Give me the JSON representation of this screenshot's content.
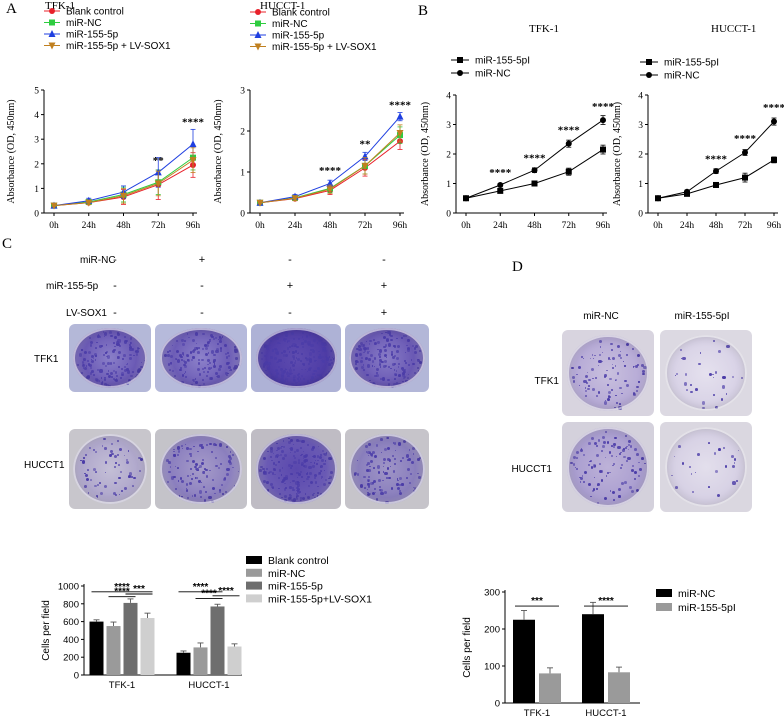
{
  "panels": {
    "A": {
      "letter": "A"
    },
    "B": {
      "letter": "B"
    },
    "C": {
      "letter": "C"
    },
    "D": {
      "letter": "D"
    }
  },
  "panel_C_table": {
    "rows": [
      {
        "label": "miR-NC",
        "values": [
          "-",
          "+",
          "-",
          "-"
        ]
      },
      {
        "label": "miR-155-5p",
        "values": [
          "-",
          "-",
          "+",
          "+"
        ]
      },
      {
        "label": "LV-SOX1",
        "values": [
          "-",
          "-",
          "-",
          "+"
        ]
      }
    ],
    "row_labels": [
      "TFK1",
      "HUCCT1"
    ]
  },
  "panel_D_table": {
    "columns": [
      "miR-NC",
      "miR-155-5pI"
    ],
    "row_labels": [
      "TFK1",
      "HUCCT1"
    ]
  },
  "colors": {
    "blank": "#e8202a",
    "nc": "#2ecc40",
    "p155": "#1f3fe0",
    "sox": "#c08020",
    "crystal_violet": "#4b3ca8"
  },
  "chart_data": [
    {
      "id": "A1",
      "type": "line",
      "title": "TFK-1",
      "xlabel": "",
      "ylabel": "Absorbance (OD, 450nm)",
      "categories": [
        "0h",
        "24h",
        "48h",
        "72h",
        "96h"
      ],
      "ylim": [
        0,
        5
      ],
      "yticks": [
        0,
        1,
        2,
        3,
        4,
        5
      ],
      "legend_position": "top-left",
      "series": [
        {
          "name": "Blank control",
          "color": "#e8202a",
          "marker": "circle",
          "values": [
            0.3,
            0.42,
            0.65,
            1.15,
            1.95
          ],
          "errors": [
            0.05,
            0.08,
            0.3,
            0.6,
            0.5
          ]
        },
        {
          "name": "miR-NC",
          "color": "#2ecc40",
          "marker": "square",
          "values": [
            0.3,
            0.45,
            0.75,
            1.25,
            2.25
          ],
          "errors": [
            0.05,
            0.08,
            0.3,
            0.5,
            0.5
          ]
        },
        {
          "name": "miR-155-5p",
          "color": "#1f3fe0",
          "marker": "triangle-up",
          "values": [
            0.3,
            0.5,
            0.85,
            1.65,
            2.8
          ],
          "errors": [
            0.05,
            0.1,
            0.25,
            0.6,
            0.6
          ]
        },
        {
          "name": "miR-155-5p + LV-SOX1",
          "color": "#c08020",
          "marker": "triangle-down",
          "values": [
            0.3,
            0.42,
            0.7,
            1.2,
            2.15
          ],
          "errors": [
            0.05,
            0.08,
            0.3,
            0.5,
            0.5
          ]
        }
      ],
      "annotations": [
        {
          "category": "72h",
          "text": "**",
          "y": 2.0
        },
        {
          "category": "96h",
          "text": "****",
          "y": 3.55
        }
      ]
    },
    {
      "id": "A2",
      "type": "line",
      "title": "HUCCT-1",
      "xlabel": "",
      "ylabel": "Absorbance (OD, 450nm)",
      "categories": [
        "0h",
        "24h",
        "48h",
        "72h",
        "96h"
      ],
      "ylim": [
        0,
        3
      ],
      "yticks": [
        0,
        1,
        2,
        3
      ],
      "legend_position": "top-left",
      "series": [
        {
          "name": "Blank control",
          "color": "#e8202a",
          "marker": "circle",
          "values": [
            0.25,
            0.35,
            0.55,
            1.1,
            1.75
          ],
          "errors": [
            0.03,
            0.05,
            0.1,
            0.2,
            0.2
          ]
        },
        {
          "name": "miR-NC",
          "color": "#2ecc40",
          "marker": "square",
          "values": [
            0.25,
            0.37,
            0.6,
            1.15,
            1.9
          ],
          "errors": [
            0.03,
            0.05,
            0.1,
            0.2,
            0.2
          ]
        },
        {
          "name": "miR-155-5p",
          "color": "#1f3fe0",
          "marker": "triangle-up",
          "values": [
            0.25,
            0.4,
            0.72,
            1.38,
            2.35
          ],
          "errors": [
            0.03,
            0.05,
            0.08,
            0.1,
            0.1
          ]
        },
        {
          "name": "miR-155-5p + LV-SOX1",
          "color": "#c08020",
          "marker": "triangle-down",
          "values": [
            0.25,
            0.36,
            0.58,
            1.15,
            1.95
          ],
          "errors": [
            0.03,
            0.05,
            0.1,
            0.2,
            0.2
          ]
        }
      ],
      "annotations": [
        {
          "category": "48h",
          "text": "****",
          "y": 0.95
        },
        {
          "category": "72h",
          "text": "**",
          "y": 1.6
        },
        {
          "category": "96h",
          "text": "****",
          "y": 2.55
        }
      ]
    },
    {
      "id": "B1",
      "type": "line",
      "title": "TFK-1",
      "xlabel": "",
      "ylabel": "Absorbance (OD, 450nm)",
      "categories": [
        "0h",
        "24h",
        "48h",
        "72h",
        "96h"
      ],
      "ylim": [
        0,
        4
      ],
      "yticks": [
        0,
        1,
        2,
        3,
        4
      ],
      "legend_position": "top-left",
      "series": [
        {
          "name": "miR-155-5pI",
          "color": "#000000",
          "marker": "square",
          "values": [
            0.5,
            0.75,
            1.0,
            1.4,
            2.15
          ],
          "errors": [
            0.03,
            0.05,
            0.08,
            0.12,
            0.15
          ]
        },
        {
          "name": "miR-NC",
          "color": "#000000",
          "marker": "circle",
          "values": [
            0.5,
            0.95,
            1.45,
            2.35,
            3.15
          ],
          "errors": [
            0.03,
            0.05,
            0.08,
            0.12,
            0.15
          ]
        }
      ],
      "annotations": [
        {
          "category": "24h",
          "text": "****",
          "y": 1.25
        },
        {
          "category": "48h",
          "text": "****",
          "y": 1.75
        },
        {
          "category": "72h",
          "text": "****",
          "y": 2.7
        },
        {
          "category": "96h",
          "text": "****",
          "y": 3.5
        }
      ]
    },
    {
      "id": "B2",
      "type": "line",
      "title": "HUCCT-1",
      "xlabel": "",
      "ylabel": "Absorbance (OD, 450nm)",
      "categories": [
        "0h",
        "24h",
        "48h",
        "72h",
        "96h"
      ],
      "ylim": [
        0,
        4
      ],
      "yticks": [
        0,
        1,
        2,
        3,
        4
      ],
      "legend_position": "top-left",
      "series": [
        {
          "name": "miR-155-5pI",
          "color": "#000000",
          "marker": "square",
          "values": [
            0.5,
            0.65,
            0.95,
            1.2,
            1.8
          ],
          "errors": [
            0.03,
            0.05,
            0.08,
            0.15,
            0.1
          ]
        },
        {
          "name": "miR-NC",
          "color": "#000000",
          "marker": "circle",
          "values": [
            0.5,
            0.72,
            1.42,
            2.05,
            3.1
          ],
          "errors": [
            0.03,
            0.05,
            0.08,
            0.1,
            0.12
          ]
        }
      ],
      "annotations": [
        {
          "category": "48h",
          "text": "****",
          "y": 1.72
        },
        {
          "category": "72h",
          "text": "****",
          "y": 2.4
        },
        {
          "category": "96h",
          "text": "****",
          "y": 3.45
        }
      ]
    },
    {
      "id": "C_bar",
      "type": "bar",
      "title": "",
      "xlabel": "",
      "ylabel": "Cells per field",
      "categories": [
        "TFK-1",
        "HUCCT-1"
      ],
      "ylim": [
        0,
        1000
      ],
      "yticks": [
        0,
        200,
        400,
        600,
        800,
        1000
      ],
      "legend_position": "right",
      "series": [
        {
          "name": "Blank control",
          "color": "#000000",
          "values": [
            600,
            250
          ],
          "errors": [
            20,
            20
          ]
        },
        {
          "name": "miR-NC",
          "color": "#9a9a9a",
          "values": [
            550,
            310
          ],
          "errors": [
            45,
            50
          ]
        },
        {
          "name": "miR-155-5p",
          "color": "#6e6e6e",
          "values": [
            810,
            770
          ],
          "errors": [
            45,
            25
          ]
        },
        {
          "name": "miR-155-5p+LV-SOX1",
          "color": "#cfcfcf",
          "values": [
            640,
            320
          ],
          "errors": [
            55,
            30
          ]
        }
      ],
      "brackets": [
        {
          "group": 0,
          "from": 0,
          "to": 3,
          "y": 935,
          "text": "****"
        },
        {
          "group": 0,
          "from": 1,
          "to": 2,
          "y": 880,
          "text": "****"
        },
        {
          "group": 0,
          "from": 2,
          "to": 3,
          "y": 910,
          "text": "***"
        },
        {
          "group": 1,
          "from": 0,
          "to": 2,
          "y": 935,
          "text": "****"
        },
        {
          "group": 1,
          "from": 1,
          "to": 2,
          "y": 860,
          "text": "****"
        },
        {
          "group": 1,
          "from": 2,
          "to": 3,
          "y": 890,
          "text": "****"
        }
      ]
    },
    {
      "id": "D_bar",
      "type": "bar",
      "title": "",
      "xlabel": "",
      "ylabel": "Cells per field",
      "categories": [
        "TFK-1",
        "HUCCT-1"
      ],
      "ylim": [
        0,
        300
      ],
      "yticks": [
        0,
        100,
        200,
        300
      ],
      "legend_position": "top-right",
      "series": [
        {
          "name": "miR-NC",
          "color": "#000000",
          "values": [
            225,
            240
          ],
          "errors": [
            25,
            32
          ]
        },
        {
          "name": "miR-155-5pI",
          "color": "#9a9a9a",
          "values": [
            80,
            83
          ],
          "errors": [
            15,
            14
          ]
        }
      ],
      "brackets": [
        {
          "group": 0,
          "from": 0,
          "to": 1,
          "y": 262,
          "text": "***"
        },
        {
          "group": 1,
          "from": 0,
          "to": 1,
          "y": 262,
          "text": "****"
        }
      ]
    }
  ]
}
